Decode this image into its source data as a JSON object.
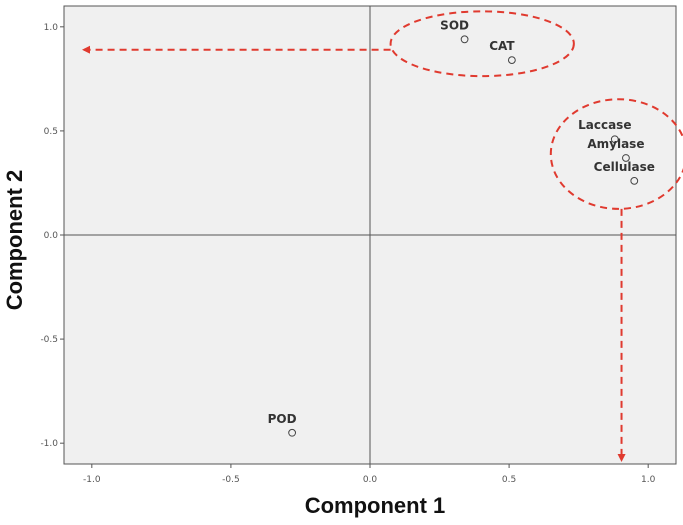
{
  "chart_data": {
    "type": "scatter",
    "xlabel": "Component 1",
    "ylabel": "Component 2",
    "xlim": [
      -1.1,
      1.1
    ],
    "ylim": [
      -1.1,
      1.1
    ],
    "xticks": [
      -1.0,
      -0.5,
      0.0,
      0.5,
      1.0
    ],
    "yticks": [
      -1.0,
      -0.5,
      0.0,
      0.5,
      1.0
    ],
    "xtick_labels": [
      "-1.0",
      "-0.5",
      "0.0",
      "0.5",
      "1.0"
    ],
    "ytick_labels": [
      "-1.0",
      "-0.5",
      "0.0",
      "0.5",
      "1.0"
    ],
    "grid": false,
    "reference_lines": {
      "x": 0,
      "y": 0
    },
    "points": [
      {
        "label": "SOD",
        "x": 0.34,
        "y": 0.94
      },
      {
        "label": "CAT",
        "x": 0.51,
        "y": 0.84
      },
      {
        "label": "Laccase",
        "x": 0.88,
        "y": 0.46
      },
      {
        "label": "Amylase",
        "x": 0.92,
        "y": 0.37
      },
      {
        "label": "Cellulase",
        "x": 0.95,
        "y": 0.26
      },
      {
        "label": "POD",
        "x": -0.28,
        "y": -0.95
      }
    ],
    "annotations": {
      "color": "#e03a2f",
      "groups": [
        {
          "members": [
            "SOD",
            "CAT"
          ],
          "arrow_direction": "left"
        },
        {
          "members": [
            "Laccase",
            "Amylase",
            "Cellulase"
          ],
          "arrow_direction": "down"
        }
      ]
    }
  }
}
